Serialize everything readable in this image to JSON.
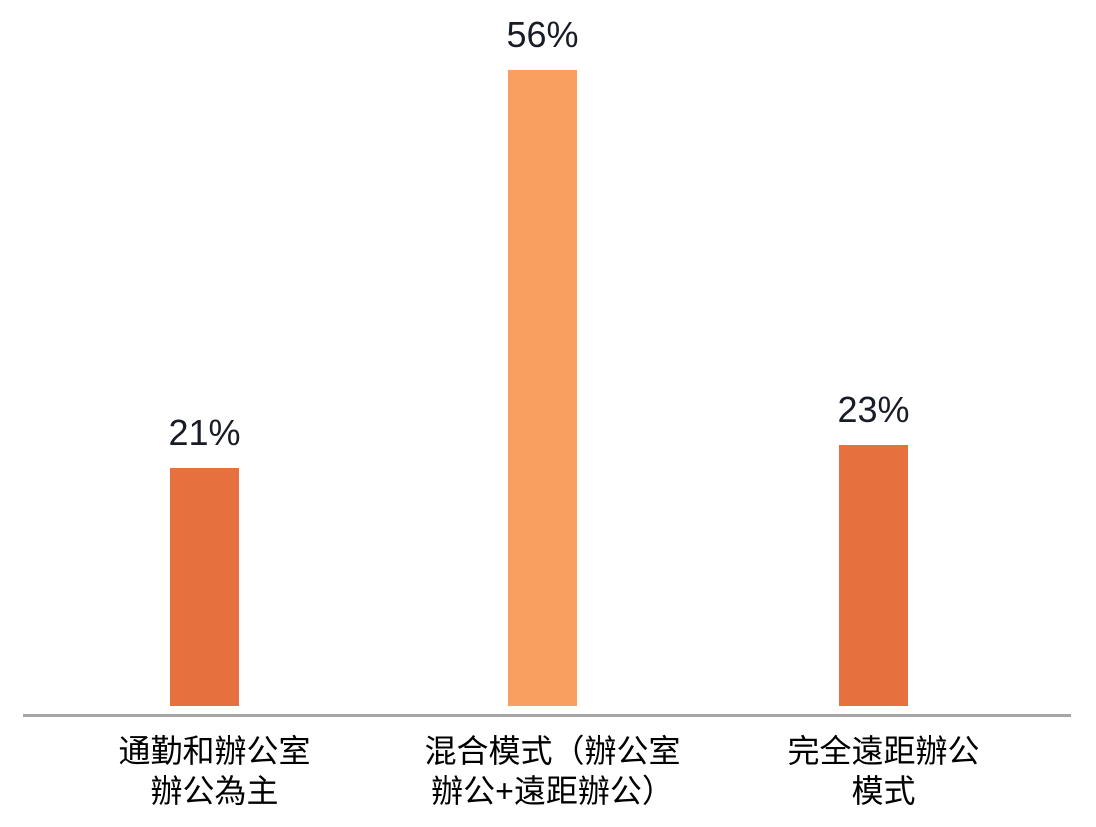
{
  "chart_data": {
    "type": "bar",
    "title": "",
    "xlabel": "",
    "ylabel": "",
    "ylim": [
      0,
      62
    ],
    "grid": false,
    "legend": false,
    "categories": [
      "通勤和辦公室辦公為主",
      "混合模式（辦公室辦公+遠距辦公）",
      "完全遠距辦公模式"
    ],
    "category_lines": [
      [
        "通勤和辦公室",
        "辦公為主"
      ],
      [
        "混合模式（辦公室",
        "辦公+遠距辦公）"
      ],
      [
        "完全遠距辦公",
        "模式"
      ]
    ],
    "values": [
      21,
      56,
      23
    ],
    "value_labels": [
      "21%",
      "56%",
      "23%"
    ],
    "bar_colors": [
      "#E6713E",
      "#F9A061",
      "#E6713E"
    ],
    "axis_line_color": "#A6A6A6",
    "value_label_color": "#181C26",
    "category_label_color": "#000000",
    "background": "#FFFFFF"
  }
}
